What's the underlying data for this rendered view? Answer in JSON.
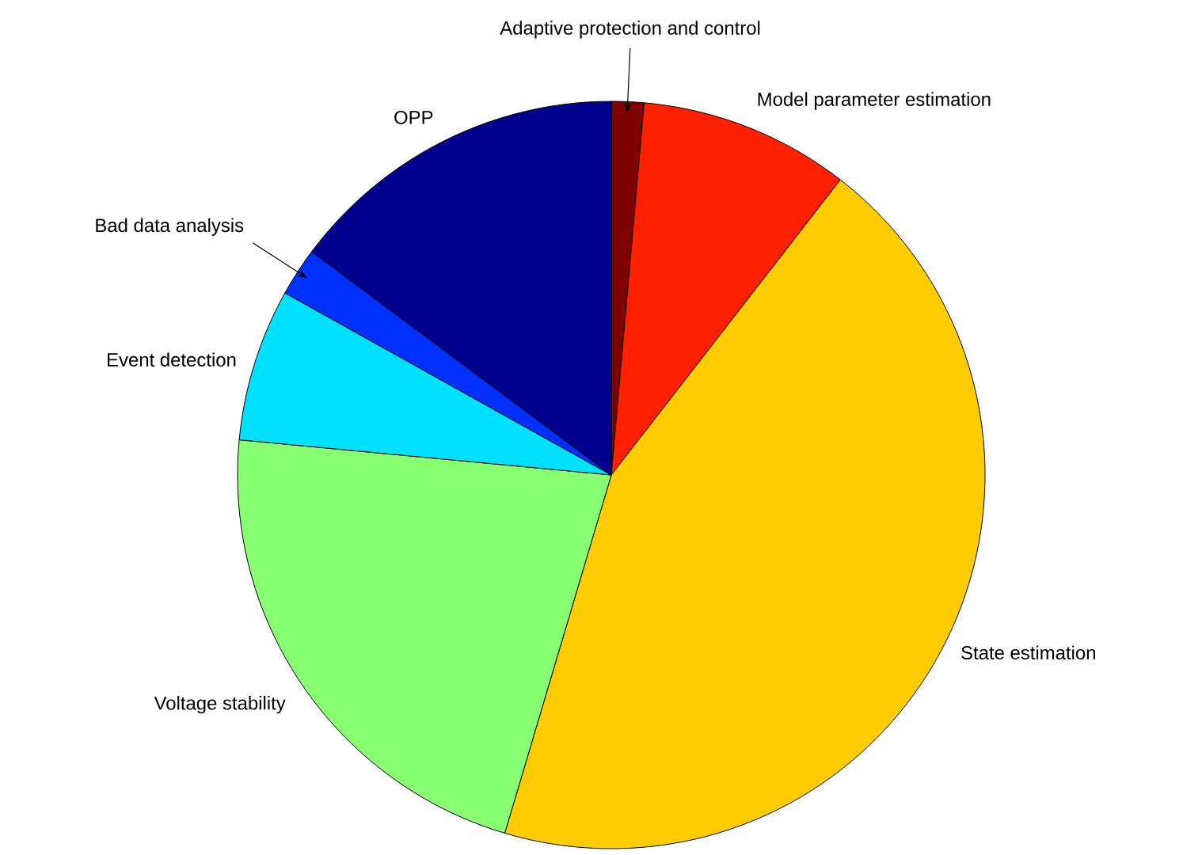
{
  "chart_data": {
    "type": "pie",
    "categories": [
      "Adaptive protection and control",
      "Model parameter estimation",
      "State estimation",
      "Voltage stability",
      "Event detection",
      "Bad data analysis",
      "OPP"
    ],
    "values": [
      1.4,
      9.1,
      44.1,
      21.9,
      6.6,
      2.1,
      14.8
    ],
    "colors": [
      "#800000",
      "#ff2000",
      "#ffcc00",
      "#88ff70",
      "#00e0ff",
      "#0030ff",
      "#00008f"
    ]
  }
}
